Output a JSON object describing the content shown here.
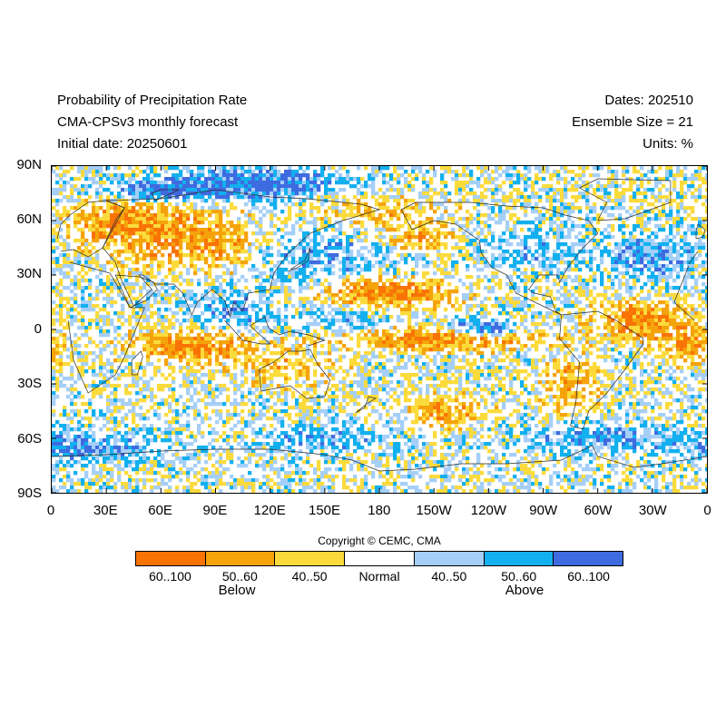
{
  "header": {
    "title": "Probability of Precipitation Rate",
    "subtitle": "CMA-CPSv3 monthly forecast",
    "initial_date": "Initial date: 20250601",
    "dates": "Dates: 202510",
    "ensemble": "Ensemble Size = 21",
    "units": "Units: %"
  },
  "axes": {
    "lat_labels": [
      "90N",
      "60N",
      "30N",
      "0",
      "30S",
      "60S",
      "90S"
    ],
    "lon_labels": [
      "0",
      "30E",
      "60E",
      "90E",
      "120E",
      "150E",
      "180",
      "150W",
      "120W",
      "90W",
      "60W",
      "30W",
      "0"
    ]
  },
  "map": {
    "projection": "equirectangular",
    "lat_range": [
      -90,
      90
    ],
    "lon_range": [
      0,
      360
    ],
    "field": "probability of precipitation rate tercile category"
  },
  "copyright": "Copyright © CEMC, CMA",
  "legend": {
    "categories": [
      {
        "label": "60..100",
        "color": "#f97306",
        "group": "Below"
      },
      {
        "label": "50..60",
        "color": "#f5a30b",
        "group": "Below"
      },
      {
        "label": "40..50",
        "color": "#fbdb3c",
        "group": "Below"
      },
      {
        "label": "Normal",
        "color": "#ffffff",
        "group": ""
      },
      {
        "label": "40..50",
        "color": "#a5cff7",
        "group": "Above"
      },
      {
        "label": "50..60",
        "color": "#12b0ef",
        "group": "Above"
      },
      {
        "label": "60..100",
        "color": "#3f6be0",
        "group": "Above"
      }
    ],
    "below_label": "Below",
    "above_label": "Above"
  }
}
